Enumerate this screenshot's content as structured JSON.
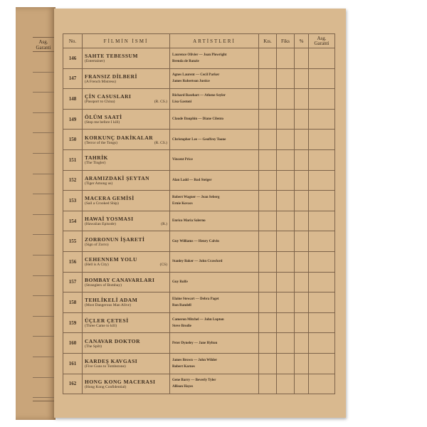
{
  "left_page": {
    "header": "Asg. Garanti"
  },
  "table": {
    "headers": {
      "no": "No.",
      "title": "FİLMİN İSMİ",
      "artists": "ARTİSTLERİ",
      "kis": "Kıs.",
      "fiks": "Fiks",
      "pct": "%",
      "asg": "Asg. Garanti"
    },
    "rows": [
      {
        "no": "146",
        "title": "SAHTE TEBESSUM",
        "original": "(Entertainer)",
        "note": "",
        "artists": [
          "Laurence Olivier — Joan Plowright",
          "Brenda de Banzie"
        ]
      },
      {
        "no": "147",
        "title": "FRANSIZ DİLBERİ",
        "original": "(A French Mistress)",
        "note": "",
        "artists": [
          "Agnes Laurent — Cecil Parker",
          "James Robertson Justice"
        ]
      },
      {
        "no": "148",
        "title": "ÇİN CASUSLARI",
        "original": "(Passport to China)",
        "note": "(R. CS.)",
        "artists": [
          "Richard Basehart — Athene Seyler",
          "Lisa Gastoni"
        ]
      },
      {
        "no": "149",
        "title": "ÖLÜM SAATİ",
        "original": "(Stop me before I kill)",
        "note": "",
        "artists": [
          "Claude Dauphin — Diane Cilento"
        ]
      },
      {
        "no": "150",
        "title": "KORKUNÇ DAKİKALAR",
        "original": "(Terror of the Tongs)",
        "note": "(R. CS.)",
        "artists": [
          "Christopher Lee — Geoffrey Toone"
        ]
      },
      {
        "no": "151",
        "title": "TAHRİK",
        "original": "(The Tingler)",
        "note": "",
        "artists": [
          "Vincent Price"
        ]
      },
      {
        "no": "152",
        "title": "ARAMIZDAKİ ŞEYTAN",
        "original": "(Tiger Among us)",
        "note": "",
        "artists": [
          "Alan Ladd — Rod Steiger"
        ]
      },
      {
        "no": "153",
        "title": "MACERA GEMİSİ",
        "original": "(Sail a Crooked Ship)",
        "note": "",
        "artists": [
          "Robert Wagner — Jean Seberg",
          "Ernie Kovacs"
        ]
      },
      {
        "no": "154",
        "title": "HAWAİ YOSMASI",
        "original": "(Hawaiian Episode)",
        "note": "(R.)",
        "artists": [
          "Enrico Maria Salerno"
        ]
      },
      {
        "no": "155",
        "title": "ZORRONUN İŞARETİ",
        "original": "(Sign of Zorro)",
        "note": "",
        "artists": [
          "Guy Williams — Henry Calvin"
        ]
      },
      {
        "no": "156",
        "title": "CEHENNEM YOLU",
        "original": "(Hell is A City)",
        "note": "(CS)",
        "artists": [
          "Stanley Baker — John Crawford"
        ]
      },
      {
        "no": "157",
        "title": "BOMBAY CANAVARLARI",
        "original": "(Stranglers of Bombay)",
        "note": "",
        "artists": [
          "Guy Rolfe"
        ]
      },
      {
        "no": "158",
        "title": "TEHLİKELİ ADAM",
        "original": "(Most Dangerous Man Alive)",
        "note": "",
        "artists": [
          "Elaine Stewart — Debra Paget",
          "Ron Randell"
        ]
      },
      {
        "no": "159",
        "title": "ÜÇLER ÇETESİ",
        "original": "(Three Came to kill)",
        "note": "",
        "artists": [
          "Cameron Mitchel — John Lupton",
          "Steve Brodie"
        ]
      },
      {
        "no": "160",
        "title": "CANAVAR DOKTOR",
        "original": "(The Spilt)",
        "note": "",
        "artists": [
          "Peter Dyneley — Jane Hylton"
        ]
      },
      {
        "no": "161",
        "title": "KARDEŞ KAVGASI",
        "original": "(Five Guns to Tombstone)",
        "note": "",
        "artists": [
          "James Brown — John Wilder",
          "Robert Karnes"
        ]
      },
      {
        "no": "162",
        "title": "HONG KONG MACERASI",
        "original": "(Hong Kong Confidential)",
        "note": "",
        "artists": [
          "Gene Barry — Beverly Tyler",
          "Allison Hayes"
        ]
      }
    ]
  }
}
